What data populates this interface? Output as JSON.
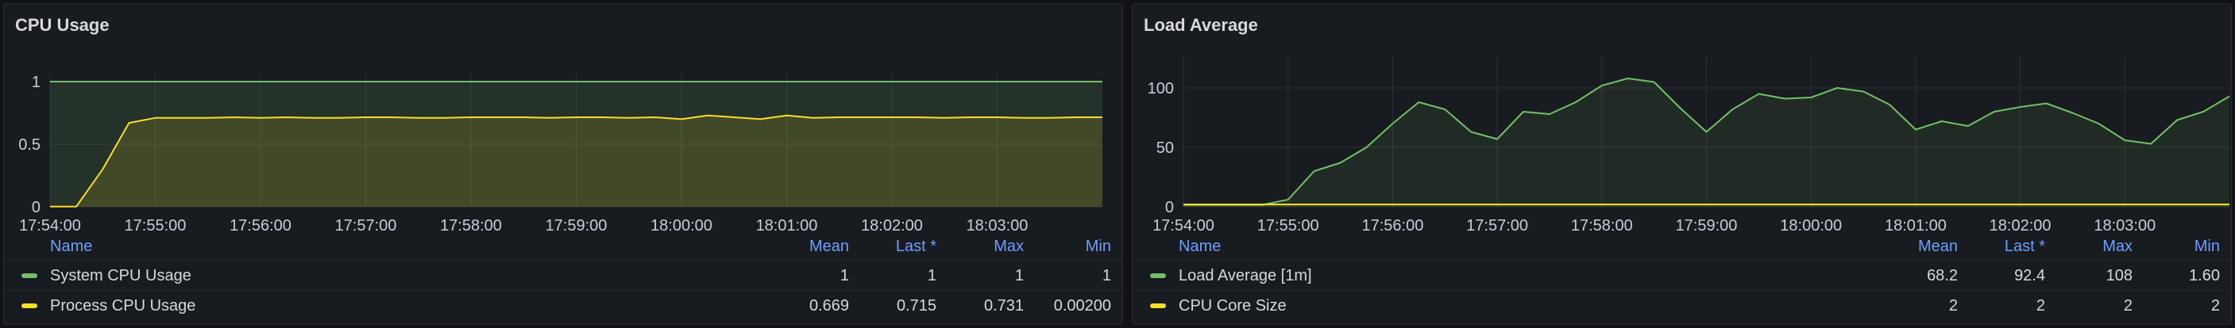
{
  "cpu_panel": {
    "title": "CPU Usage",
    "legend_headers": {
      "name": "Name",
      "mean": "Mean",
      "last": "Last *",
      "max": "Max",
      "min": "Min"
    },
    "legend": [
      {
        "name": "System CPU Usage",
        "mean": "1",
        "last": "1",
        "max": "1",
        "min": "1",
        "color": "#73bf69"
      },
      {
        "name": "Process CPU Usage",
        "mean": "0.669",
        "last": "0.715",
        "max": "0.731",
        "min": "0.00200",
        "color": "#fade2a"
      }
    ]
  },
  "load_panel": {
    "title": "Load Average",
    "legend_headers": {
      "name": "Name",
      "mean": "Mean",
      "last": "Last *",
      "max": "Max",
      "min": "Min"
    },
    "legend": [
      {
        "name": "Load Average [1m]",
        "mean": "68.2",
        "last": "92.4",
        "max": "108",
        "min": "1.60",
        "color": "#73bf69"
      },
      {
        "name": "CPU Core Size",
        "mean": "2",
        "last": "2",
        "max": "2",
        "min": "2",
        "color": "#fade2a"
      }
    ]
  },
  "chart_data": [
    {
      "type": "line",
      "title": "CPU Usage",
      "xlabel": "",
      "ylabel": "",
      "x_ticks": [
        "17:54:00",
        "17:55:00",
        "17:56:00",
        "17:57:00",
        "17:58:00",
        "17:59:00",
        "18:00:00",
        "18:01:00",
        "18:02:00",
        "18:03:00"
      ],
      "y_ticks": [
        "0",
        "0.5",
        "1"
      ],
      "xlim": [
        "17:54:00",
        "18:04:00"
      ],
      "ylim": [
        0,
        1
      ],
      "grid": true,
      "legend_position": "bottom",
      "series": [
        {
          "name": "System CPU Usage",
          "color": "#73bf69",
          "x": [
            "17:54:00",
            "18:04:00"
          ],
          "values": [
            1,
            1
          ]
        },
        {
          "name": "Process CPU Usage",
          "color": "#fade2a",
          "x": [
            "17:54:00",
            "17:54:15",
            "17:54:30",
            "17:54:45",
            "17:55:00",
            "17:55:15",
            "17:55:30",
            "17:55:45",
            "17:56:00",
            "17:56:15",
            "17:56:30",
            "17:56:45",
            "17:57:00",
            "17:57:15",
            "17:57:30",
            "17:57:45",
            "17:58:00",
            "17:58:15",
            "17:58:30",
            "17:58:45",
            "17:59:00",
            "17:59:15",
            "17:59:30",
            "17:59:45",
            "18:00:00",
            "18:00:15",
            "18:00:30",
            "18:00:45",
            "18:01:00",
            "18:01:15",
            "18:01:30",
            "18:01:45",
            "18:02:00",
            "18:02:15",
            "18:02:30",
            "18:02:45",
            "18:03:00",
            "18:03:15",
            "18:03:30",
            "18:03:45",
            "18:04:00"
          ],
          "values": [
            0.002,
            0.002,
            0.3,
            0.67,
            0.71,
            0.71,
            0.71,
            0.715,
            0.71,
            0.715,
            0.71,
            0.71,
            0.715,
            0.715,
            0.71,
            0.71,
            0.715,
            0.715,
            0.715,
            0.71,
            0.715,
            0.715,
            0.71,
            0.715,
            0.7,
            0.73,
            0.715,
            0.7,
            0.73,
            0.71,
            0.715,
            0.715,
            0.715,
            0.715,
            0.71,
            0.715,
            0.715,
            0.71,
            0.71,
            0.715,
            0.715
          ]
        }
      ]
    },
    {
      "type": "line",
      "title": "Load Average",
      "xlabel": "",
      "ylabel": "",
      "x_ticks": [
        "17:54:00",
        "17:55:00",
        "17:56:00",
        "17:57:00",
        "17:58:00",
        "17:59:00",
        "18:00:00",
        "18:01:00",
        "18:02:00",
        "18:03:00"
      ],
      "y_ticks": [
        "0",
        "50",
        "100"
      ],
      "xlim": [
        "17:54:00",
        "18:04:00"
      ],
      "ylim": [
        0,
        120
      ],
      "grid": true,
      "legend_position": "bottom",
      "series": [
        {
          "name": "Load Average [1m]",
          "color": "#73bf69",
          "x": [
            "17:54:00",
            "17:54:15",
            "17:54:30",
            "17:54:45",
            "17:55:00",
            "17:55:15",
            "17:55:30",
            "17:55:45",
            "17:56:00",
            "17:56:15",
            "17:56:30",
            "17:56:45",
            "17:57:00",
            "17:57:15",
            "17:57:30",
            "17:57:45",
            "17:58:00",
            "17:58:15",
            "17:58:30",
            "17:58:45",
            "17:59:00",
            "17:59:15",
            "17:59:30",
            "17:59:45",
            "18:00:00",
            "18:00:15",
            "18:00:30",
            "18:00:45",
            "18:01:00",
            "18:01:15",
            "18:01:30",
            "18:01:45",
            "18:02:00",
            "18:02:15",
            "18:02:30",
            "18:02:45",
            "18:03:00",
            "18:03:15",
            "18:03:30",
            "18:03:45",
            "18:04:00"
          ],
          "values": [
            1.6,
            1.6,
            1.6,
            1.6,
            6,
            30,
            37,
            50,
            70,
            88,
            82,
            63,
            57,
            80,
            78,
            88,
            102,
            108,
            105,
            83,
            63,
            82,
            95,
            91,
            92,
            100,
            97,
            86,
            65,
            72,
            68,
            80,
            84,
            87,
            79,
            70,
            56,
            53,
            73,
            80,
            93
          ]
        },
        {
          "name": "CPU Core Size",
          "color": "#fade2a",
          "x": [
            "17:54:00",
            "18:04:00"
          ],
          "values": [
            2,
            2
          ]
        }
      ]
    }
  ]
}
